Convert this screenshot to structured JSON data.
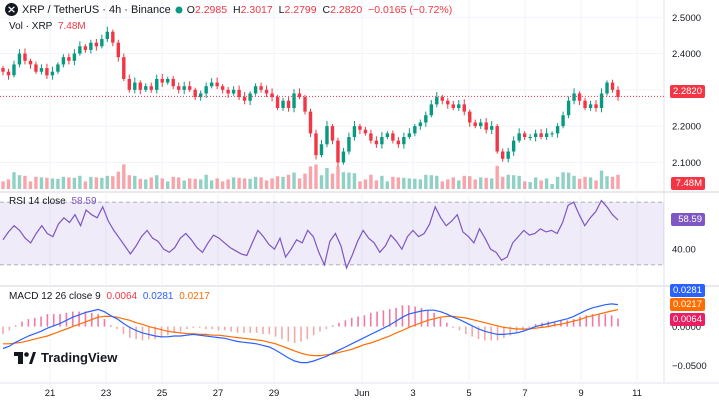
{
  "header": {
    "symbol": "XRP / TetherUS · 4h · Binance",
    "open_label": "O",
    "open": "2.2985",
    "high_label": "H",
    "high": "2.3017",
    "low_label": "L",
    "low": "2.2799",
    "close_label": "C",
    "close": "2.2820",
    "change": "−0.0165 (−0.72%)",
    "status_color": "#089981"
  },
  "volume_legend": {
    "label": "Vol · XRP",
    "value": "7.48M"
  },
  "rsi_legend": {
    "label": "RSI 14 close",
    "value": "58.59"
  },
  "macd_legend": {
    "label": "MACD 12 26 close 9",
    "hist": "0.0064",
    "macd": "0.0281",
    "signal": "0.0217"
  },
  "badges": {
    "price": "2.2820",
    "volume": "7.48M",
    "rsi": "58.59",
    "macd": "0.0281",
    "signal": "0.0217",
    "hist": "0.0064"
  },
  "logo_text": "TradingView",
  "colors": {
    "up": "#089981",
    "down": "#f23645",
    "rsi": "#7e57c2",
    "macd": "#2962ff",
    "signal": "#ff6d00",
    "grid": "#f0f3fa"
  },
  "chart_data": [
    {
      "type": "candlestick",
      "title": "XRP / TetherUS · 4h · Binance",
      "x_tick_labels": [
        "21",
        "23",
        "25",
        "27",
        "29",
        "Jun",
        "3",
        "5",
        "7",
        "9",
        "11"
      ],
      "price_axis_ticks": [
        2.5,
        2.4,
        2.3,
        2.2,
        2.1
      ],
      "price_range": [
        2.035,
        2.52
      ],
      "last_price": 2.282,
      "volume_indicator": "Vol · XRP",
      "last_volume": "7.48M",
      "close_series_approx": [
        2.35,
        2.34,
        2.37,
        2.4,
        2.38,
        2.37,
        2.35,
        2.36,
        2.34,
        2.35,
        2.37,
        2.39,
        2.38,
        2.4,
        2.42,
        2.41,
        2.43,
        2.42,
        2.44,
        2.46,
        2.43,
        2.39,
        2.33,
        2.3,
        2.32,
        2.3,
        2.31,
        2.3,
        2.33,
        2.32,
        2.33,
        2.31,
        2.3,
        2.31,
        2.3,
        2.28,
        2.29,
        2.31,
        2.32,
        2.31,
        2.3,
        2.29,
        2.3,
        2.28,
        2.27,
        2.29,
        2.31,
        2.3,
        2.29,
        2.28,
        2.25,
        2.27,
        2.25,
        2.29,
        2.28,
        2.24,
        2.18,
        2.12,
        2.15,
        2.2,
        2.16,
        2.1,
        2.13,
        2.17,
        2.2,
        2.19,
        2.18,
        2.16,
        2.15,
        2.17,
        2.18,
        2.16,
        2.15,
        2.17,
        2.18,
        2.2,
        2.21,
        2.23,
        2.26,
        2.28,
        2.27,
        2.26,
        2.25,
        2.26,
        2.24,
        2.21,
        2.2,
        2.21,
        2.19,
        2.2,
        2.13,
        2.11,
        2.13,
        2.16,
        2.18,
        2.17,
        2.17,
        2.18,
        2.17,
        2.18,
        2.18,
        2.2,
        2.23,
        2.27,
        2.29,
        2.27,
        2.25,
        2.26,
        2.25,
        2.29,
        2.32,
        2.3,
        2.28
      ]
    },
    {
      "type": "line",
      "title": "RSI 14 close",
      "y_tick_labels": [
        40
      ],
      "band": [
        30,
        70
      ],
      "last_value": 58.59,
      "values_approx": [
        46,
        51,
        55,
        52,
        47,
        44,
        50,
        55,
        50,
        48,
        56,
        60,
        57,
        62,
        55,
        65,
        62,
        60,
        67,
        58,
        52,
        47,
        42,
        37,
        42,
        48,
        52,
        47,
        45,
        40,
        38,
        41,
        47,
        50,
        46,
        41,
        38,
        44,
        49,
        47,
        44,
        41,
        39,
        37,
        36,
        44,
        52,
        48,
        43,
        40,
        47,
        35,
        40,
        46,
        44,
        52,
        48,
        38,
        30,
        45,
        50,
        42,
        28,
        36,
        45,
        52,
        47,
        44,
        38,
        42,
        49,
        45,
        40,
        48,
        52,
        48,
        50,
        56,
        67,
        60,
        55,
        58,
        62,
        51,
        48,
        44,
        53,
        47,
        40,
        38,
        33,
        35,
        44,
        48,
        52,
        49,
        50,
        53,
        51,
        52,
        50,
        57,
        68,
        70,
        62,
        55,
        60,
        64,
        71,
        67,
        62,
        58.6
      ]
    },
    {
      "type": "line",
      "title": "MACD 12 26 close 9",
      "y_tick_labels": [
        0.0,
        -0.05
      ],
      "series": [
        {
          "name": "MACD",
          "last_value": 0.0281
        },
        {
          "name": "Signal",
          "last_value": 0.0217
        },
        {
          "name": "Histogram",
          "last_value": 0.0064
        }
      ],
      "macd_approx": [
        -0.028,
        -0.025,
        -0.02,
        -0.016,
        -0.012,
        -0.009,
        -0.006,
        -0.002,
        0.001,
        0.004,
        0.008,
        0.012,
        0.015,
        0.018,
        0.02,
        0.022,
        0.019,
        0.014,
        0.01,
        0.004,
        -0.001,
        -0.005,
        -0.008,
        -0.01,
        -0.012,
        -0.013,
        -0.013,
        -0.012,
        -0.012,
        -0.011,
        -0.01,
        -0.011,
        -0.012,
        -0.013,
        -0.014,
        -0.015,
        -0.017,
        -0.019,
        -0.02,
        -0.021,
        -0.022,
        -0.024,
        -0.026,
        -0.03,
        -0.035,
        -0.04,
        -0.044,
        -0.046,
        -0.046,
        -0.044,
        -0.041,
        -0.038,
        -0.034,
        -0.03,
        -0.026,
        -0.022,
        -0.018,
        -0.014,
        -0.01,
        -0.006,
        -0.002,
        0.002,
        0.007,
        0.012,
        0.016,
        0.018,
        0.02,
        0.021,
        0.021,
        0.019,
        0.016,
        0.012,
        0.009,
        0.005,
        0.001,
        -0.003,
        -0.006,
        -0.008,
        -0.01,
        -0.01,
        -0.009,
        -0.008,
        -0.006,
        -0.003,
        0.0,
        0.002,
        0.004,
        0.006,
        0.008,
        0.01,
        0.013,
        0.017,
        0.021,
        0.024,
        0.026,
        0.028,
        0.029,
        0.0281
      ],
      "signal_approx": [
        -0.022,
        -0.022,
        -0.021,
        -0.02,
        -0.018,
        -0.016,
        -0.014,
        -0.012,
        -0.009,
        -0.006,
        -0.003,
        0.0,
        0.003,
        0.006,
        0.009,
        0.012,
        0.013,
        0.013,
        0.012,
        0.01,
        0.008,
        0.005,
        0.003,
        0.0,
        -0.002,
        -0.004,
        -0.006,
        -0.007,
        -0.008,
        -0.009,
        -0.009,
        -0.01,
        -0.01,
        -0.011,
        -0.011,
        -0.012,
        -0.013,
        -0.014,
        -0.015,
        -0.016,
        -0.017,
        -0.018,
        -0.02,
        -0.022,
        -0.025,
        -0.028,
        -0.031,
        -0.034,
        -0.036,
        -0.037,
        -0.037,
        -0.036,
        -0.035,
        -0.033,
        -0.031,
        -0.029,
        -0.026,
        -0.023,
        -0.021,
        -0.018,
        -0.015,
        -0.012,
        -0.008,
        -0.005,
        -0.001,
        0.002,
        0.005,
        0.008,
        0.01,
        0.012,
        0.013,
        0.013,
        0.012,
        0.011,
        0.009,
        0.007,
        0.005,
        0.003,
        0.001,
        -0.001,
        -0.002,
        -0.003,
        -0.003,
        -0.003,
        -0.002,
        -0.001,
        0.0,
        0.002,
        0.003,
        0.005,
        0.007,
        0.009,
        0.012,
        0.014,
        0.016,
        0.018,
        0.02,
        0.0217
      ]
    }
  ]
}
